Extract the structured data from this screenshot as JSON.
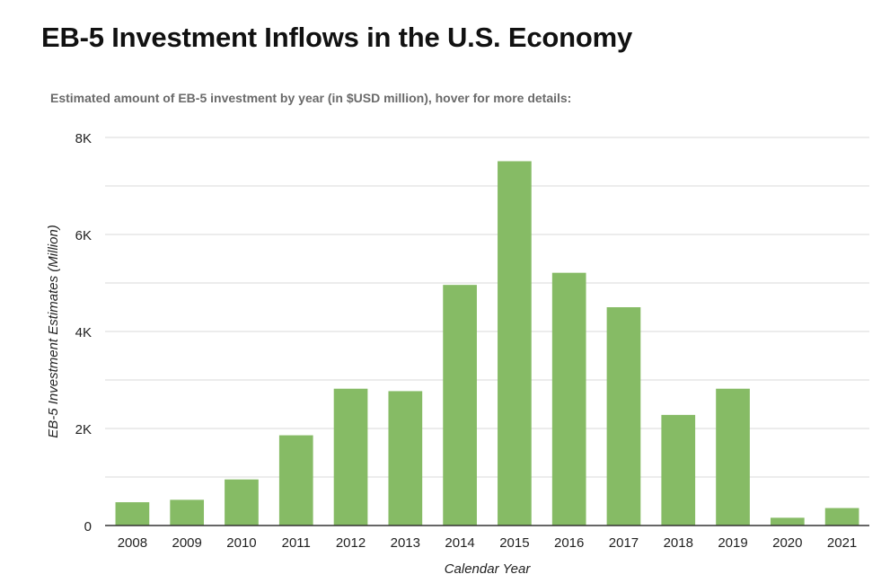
{
  "chart_data": {
    "type": "bar",
    "title": "EB-5 Investment Inflows in the U.S. Economy",
    "subtitle": "Estimated amount of EB-5 investment by year (in $USD million), hover for more details:",
    "xlabel": "Calendar Year",
    "ylabel": "EB-5 Investment Estimates (Million)",
    "categories": [
      "2008",
      "2009",
      "2010",
      "2011",
      "2012",
      "2013",
      "2014",
      "2015",
      "2016",
      "2017",
      "2018",
      "2019",
      "2020",
      "2021"
    ],
    "values": [
      480,
      530,
      950,
      1860,
      2820,
      2770,
      4960,
      7510,
      5210,
      4500,
      2280,
      2820,
      160,
      360
    ],
    "ylim": [
      0,
      8000
    ],
    "yticks": [
      0,
      2000,
      4000,
      6000,
      8000
    ],
    "ytick_labels": [
      "0",
      "2K",
      "4K",
      "6K",
      "8K"
    ],
    "minor_grid_step": 1000,
    "grid": true,
    "bar_color": "#86bb65",
    "grid_color": "#d9d9d9",
    "baseline_color": "#333333"
  }
}
